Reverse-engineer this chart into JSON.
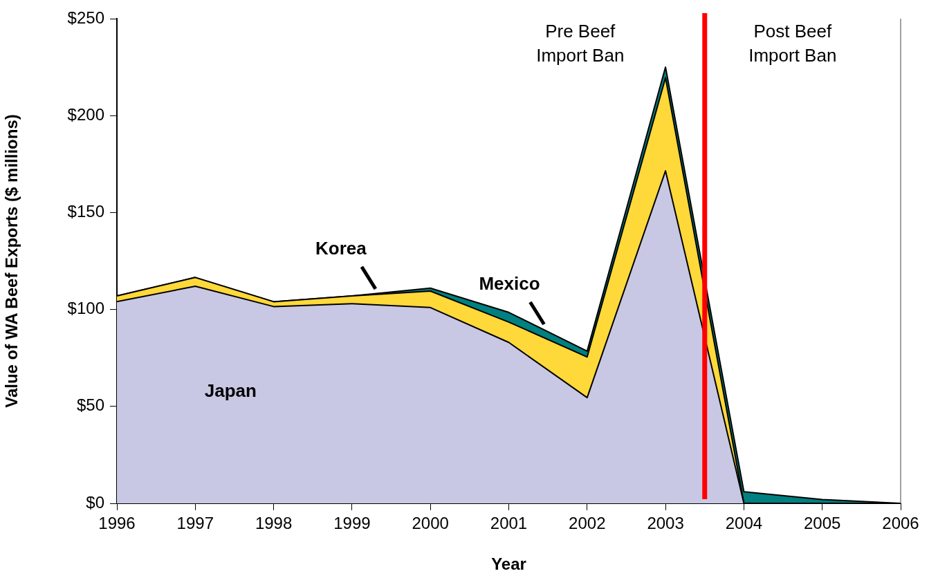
{
  "chart_data": {
    "type": "area",
    "stacked": true,
    "xlabel": "Year",
    "ylabel": "Value of WA Beef Exports ($ millions)",
    "x": [
      1996,
      1997,
      1998,
      1999,
      2000,
      2001,
      2002,
      2003,
      2004,
      2005,
      2006
    ],
    "series": [
      {
        "name": "Japan",
        "color": "#c8c8e4",
        "values": [
          104,
          112,
          101.5,
          103,
          101,
          83,
          54.5,
          171.5,
          0,
          0,
          0
        ]
      },
      {
        "name": "Korea",
        "color": "#ffd83a",
        "values": [
          3,
          4.5,
          2.5,
          4,
          8.5,
          10.5,
          21,
          48,
          0,
          0,
          0
        ]
      },
      {
        "name": "Mexico",
        "color": "#008080",
        "values": [
          0,
          0,
          0,
          0,
          1.5,
          5,
          3,
          5.5,
          6,
          2,
          0
        ]
      }
    ],
    "xlim": [
      1996,
      2006
    ],
    "xticks": [
      1996,
      1997,
      1998,
      1999,
      2000,
      2001,
      2002,
      2003,
      2004,
      2005,
      2006
    ],
    "ylim": [
      0,
      250
    ],
    "yticks": [
      {
        "value": 0,
        "label": "$0"
      },
      {
        "value": 50,
        "label": "$50"
      },
      {
        "value": 100,
        "label": "$100"
      },
      {
        "value": 150,
        "label": "$150"
      },
      {
        "value": 200,
        "label": "$200"
      },
      {
        "value": 250,
        "label": "$250"
      }
    ],
    "ref_lines": [
      {
        "axis": "x",
        "value": 2003.5,
        "color": "#ff0000"
      }
    ],
    "annotations": [
      "Pre Beef Import Ban",
      "Post Beef Import Ban"
    ],
    "grid": false,
    "legend": false
  }
}
